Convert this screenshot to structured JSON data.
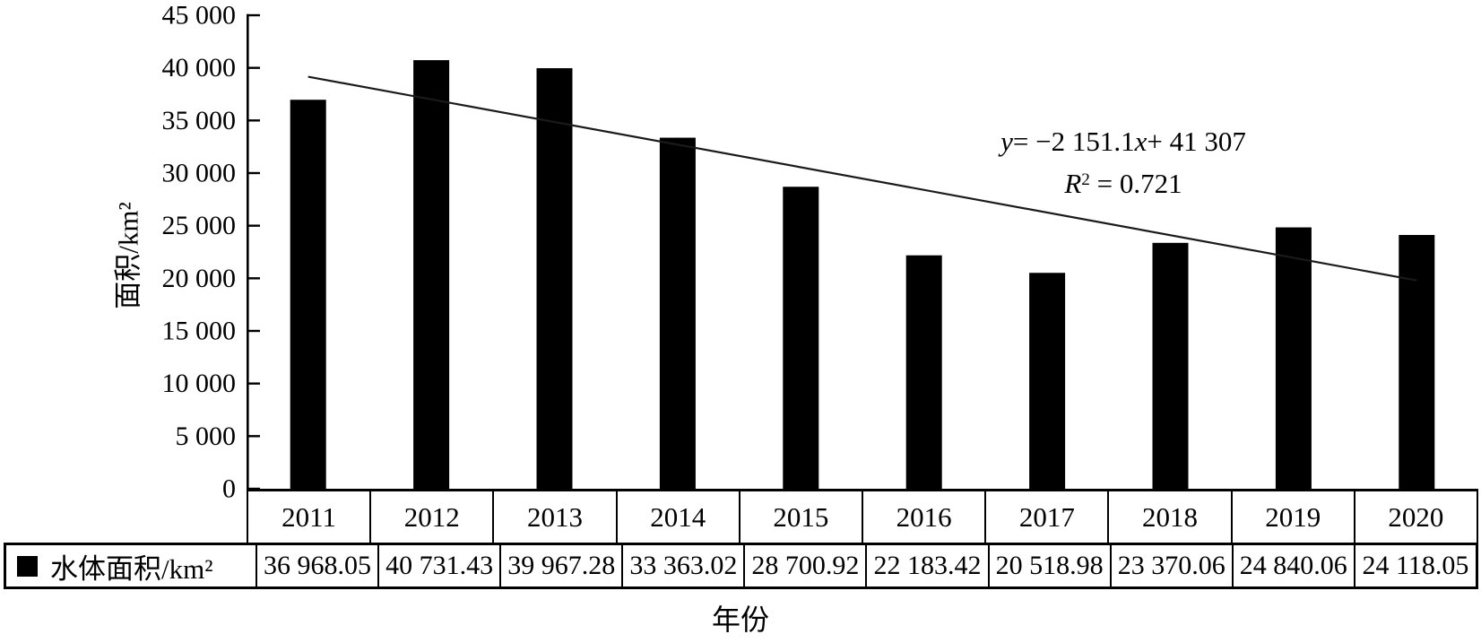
{
  "chart_data": {
    "type": "bar",
    "title": "",
    "categories": [
      "2011",
      "2012",
      "2013",
      "2014",
      "2015",
      "2016",
      "2017",
      "2018",
      "2019",
      "2020"
    ],
    "series": [
      {
        "name": "水体面积/km²",
        "values": [
          36968.05,
          40731.43,
          39967.28,
          33363.02,
          28700.92,
          22183.42,
          20518.98,
          23370.06,
          24840.06,
          24118.05
        ]
      }
    ],
    "value_labels": [
      "36 968.05",
      "40 731.43",
      "39 967.28",
      "33 363.02",
      "28 700.92",
      "22 183.42",
      "20 518.98",
      "23 370.06",
      "24 840.06",
      "24 118.05"
    ],
    "xlabel": "年份",
    "ylabel": "面积/km²",
    "ylim": [
      0,
      45000
    ],
    "ytick_values": [
      0,
      5000,
      10000,
      15000,
      20000,
      25000,
      30000,
      35000,
      40000,
      45000
    ],
    "ytick_labels": [
      "0",
      "5 000",
      "10 000",
      "15 000",
      "20 000",
      "25 000",
      "30 000",
      "35 000",
      "40 000",
      "45 000"
    ],
    "grid": false,
    "legend_position": "bottom-table",
    "legend_label": "水体面积/km²",
    "bar_color": "#000000",
    "line_color": "#1a1a1a",
    "trendline": {
      "slope": -2151.1,
      "intercept": 41307,
      "r2": 0.721
    }
  },
  "annotation": {
    "eq_y": "y",
    "eq_mid": "= −2 151.1",
    "eq_x": "x",
    "eq_tail": "+ 41 307",
    "r2_base": "R",
    "r2_exp": "2",
    "r2_tail": " = 0.721"
  }
}
